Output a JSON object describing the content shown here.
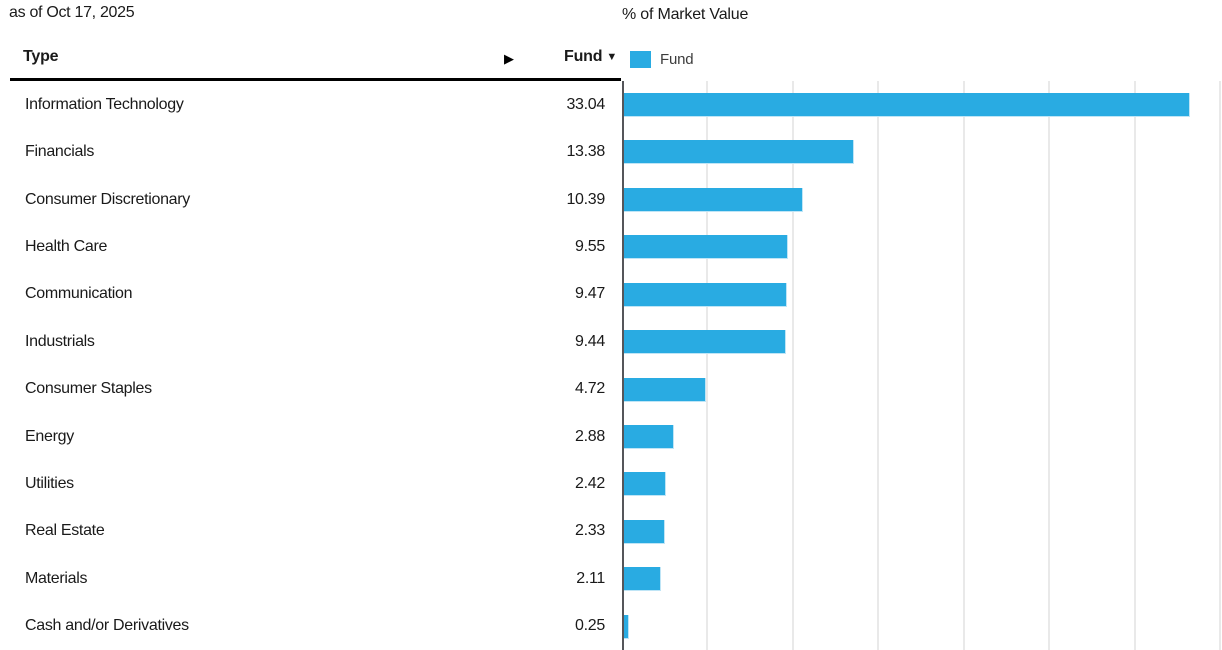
{
  "meta": {
    "as_of": "as of Oct 17, 2025"
  },
  "table": {
    "type_header": "Type",
    "fund_header": "Fund",
    "sort_indicator": "▼",
    "scroll_arrow": "▶"
  },
  "chart": {
    "title": "% of Market Value",
    "legend_label": "Fund"
  },
  "colors": {
    "bar_fill": "#29abe2",
    "bar_edge": "#bfe5f6",
    "gridline": "#e9e9e9",
    "axis_line": "#55565a",
    "header_rule": "#000000",
    "text": "#1a1a1a"
  },
  "chart_data": {
    "type": "bar",
    "orientation": "horizontal",
    "title": "% of Market Value",
    "series_name": "Fund",
    "categories": [
      "Information Technology",
      "Financials",
      "Consumer Discretionary",
      "Health Care",
      "Communication",
      "Industrials",
      "Consumer Staples",
      "Energy",
      "Utilities",
      "Real Estate",
      "Materials",
      "Cash and/or Derivatives"
    ],
    "values": [
      33.04,
      13.38,
      10.39,
      9.55,
      9.47,
      9.44,
      4.72,
      2.88,
      2.42,
      2.33,
      2.11,
      0.25
    ],
    "xlim": [
      0,
      35.1
    ],
    "gridline_step": 5,
    "grid": true,
    "legend_position": "top-left",
    "bar_color": "#29abe2"
  }
}
